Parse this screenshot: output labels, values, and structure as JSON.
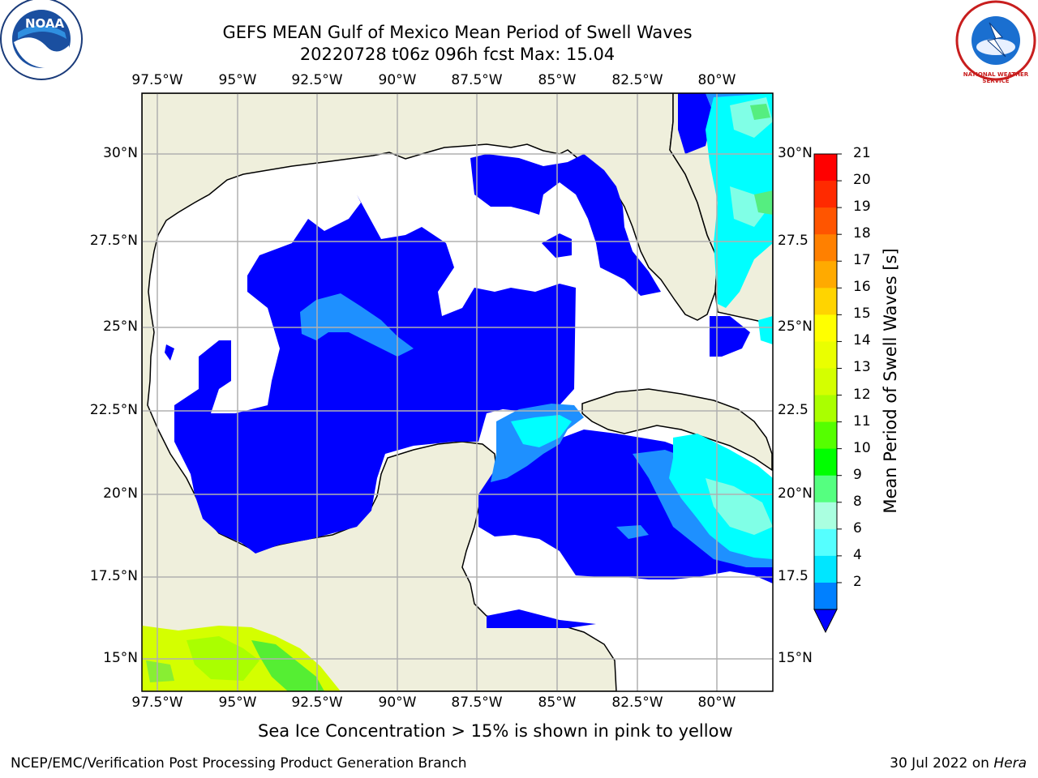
{
  "title_line1": "GEFS MEAN Gulf of Mexico Mean Period of Swell Waves",
  "title_line2": "20220728 t06z 096h fcst   Max: 15.04",
  "lon_ticks": [
    "97.5°W",
    "95°W",
    "92.5°W",
    "90°W",
    "87.5°W",
    "85°W",
    "82.5°W",
    "80°W"
  ],
  "lat_ticks_left": [
    "30°N",
    "27.5°N",
    "25°N",
    "22.5°N",
    "20°N",
    "17.5°N",
    "15°N"
  ],
  "lat_ticks_right": [
    "30°N",
    "27.5",
    "25°N",
    "22.5",
    "20°N",
    "17.5",
    "15°N"
  ],
  "colorbar": {
    "title": "Mean Period of Swell Waves [s]",
    "labels": [
      "21",
      "20",
      "19",
      "18",
      "17",
      "16",
      "15",
      "14",
      "13",
      "12",
      "11",
      "10",
      "9",
      "8",
      "6",
      "4",
      "2"
    ],
    "colors": [
      "#ff0000",
      "#ff2a00",
      "#ff5500",
      "#ff8000",
      "#ffaa00",
      "#ffd400",
      "#ffff00",
      "#eaff00",
      "#d4ff00",
      "#aaff00",
      "#55ff00",
      "#00ff00",
      "#55ff80",
      "#aaffe0",
      "#55ffff",
      "#00e6ff",
      "#0080ff"
    ],
    "extend_color": "#0000ff"
  },
  "colors": {
    "land": "#efefdc",
    "water": "#ffffff",
    "swell_blue": "#0000ff",
    "swell_mid": "#1e90ff",
    "swell_cyan": "#00ffff",
    "swell_green": "#80ff80",
    "swell_yellow": "#d4ff00",
    "grid": "#b0b0b0"
  },
  "footer_note": "Sea Ice Concentration > 15% is shown in pink to yellow",
  "credit_left": "NCEP/EMC/Verification Post Processing Product Generation Branch",
  "credit_right_date": "30 Jul 2022 on",
  "credit_right_host": "Hera",
  "logos": {
    "left": "NOAA",
    "right": "NATIONAL WEATHER SERVICE"
  }
}
